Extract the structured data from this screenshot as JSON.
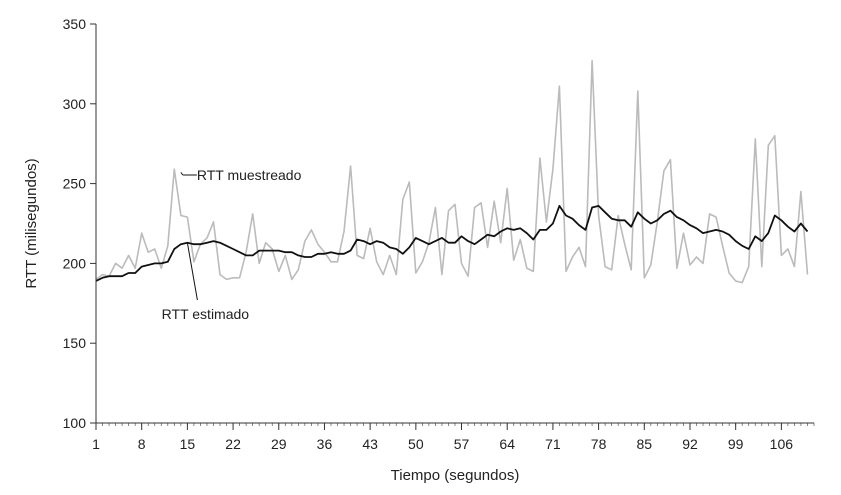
{
  "chart_data": {
    "type": "line",
    "xlabel": "Tiempo (segundos)",
    "ylabel": "RTT (milisegundos)",
    "xlim": [
      1,
      111
    ],
    "ylim": [
      100,
      350
    ],
    "x_ticks": [
      1,
      8,
      15,
      22,
      29,
      36,
      43,
      50,
      57,
      64,
      71,
      78,
      85,
      92,
      99,
      106
    ],
    "y_ticks": [
      100,
      150,
      200,
      250,
      300,
      350
    ],
    "grid": false,
    "legend": "none",
    "annotations": [
      {
        "text": "RTT muestreado",
        "series": "sampled",
        "x": 14,
        "y": 257
      },
      {
        "text": "RTT estimado",
        "series": "estimated",
        "x": 15,
        "y": 213
      }
    ],
    "colors": {
      "sampled": "#bbbbbb",
      "estimated": "#111111",
      "axis": "#333333"
    },
    "series": [
      {
        "key": "sampled",
        "x_start": 1,
        "x_step": 1,
        "values": [
          190,
          193,
          192,
          200,
          197,
          205,
          197,
          219,
          207,
          209,
          197,
          211,
          259,
          230,
          229,
          201,
          212,
          216,
          226,
          193,
          190,
          191,
          191,
          207,
          231,
          200,
          213,
          209,
          195,
          205,
          190,
          196,
          214,
          221,
          212,
          207,
          201,
          201,
          220,
          261,
          205,
          203,
          222,
          201,
          193,
          205,
          193,
          240,
          251,
          194,
          201,
          213,
          235,
          193,
          233,
          237,
          200,
          192,
          235,
          238,
          210,
          239,
          213,
          247,
          202,
          215,
          197,
          195,
          266,
          226,
          259,
          311,
          195,
          204,
          210,
          198,
          327,
          230,
          198,
          196,
          230,
          212,
          196,
          308,
          191,
          199,
          226,
          258,
          265,
          197,
          219,
          199,
          204,
          200,
          231,
          229,
          211,
          194,
          189,
          188,
          198,
          278,
          198,
          274,
          280,
          205,
          209,
          198,
          245,
          193
        ]
      },
      {
        "key": "estimated",
        "x_start": 1,
        "x_step": 1,
        "values": [
          189,
          191,
          192,
          192,
          192,
          194,
          194,
          198,
          199,
          200,
          200,
          201,
          209,
          212,
          213,
          212,
          212,
          213,
          214,
          213,
          211,
          209,
          207,
          205,
          205,
          208,
          208,
          208,
          208,
          207,
          207,
          205,
          204,
          204,
          206,
          206,
          207,
          206,
          206,
          208,
          215,
          214,
          212,
          214,
          213,
          210,
          209,
          206,
          210,
          216,
          214,
          212,
          214,
          216,
          213,
          213,
          217,
          214,
          212,
          215,
          218,
          217,
          220,
          222,
          221,
          222,
          219,
          215,
          221,
          221,
          225,
          236,
          230,
          228,
          224,
          221,
          235,
          236,
          232,
          228,
          227,
          227,
          223,
          232,
          228,
          225,
          227,
          231,
          233,
          229,
          227,
          224,
          222,
          219,
          220,
          221,
          220,
          218,
          214,
          211,
          209,
          217,
          214,
          219,
          230,
          227,
          223,
          220,
          225,
          220
        ]
      }
    ]
  }
}
